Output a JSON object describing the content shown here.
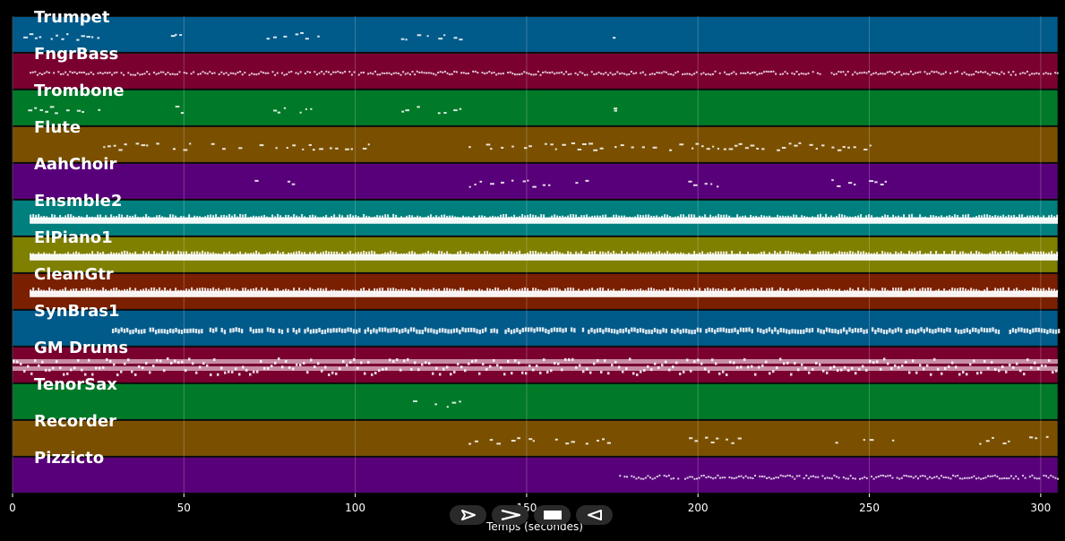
{
  "chart_data": {
    "type": "piano-roll",
    "xlabel": "Temps (secondes)",
    "xlim": [
      0,
      305
    ],
    "xticks": [
      0,
      50,
      100,
      150,
      200,
      250,
      300
    ],
    "grid": true,
    "tracks": [
      {
        "name": "Trumpet",
        "color": "#005a8a",
        "segments": [
          [
            3,
            26,
            "sparse"
          ],
          [
            46,
            50,
            "sparse"
          ],
          [
            74,
            90,
            "sparse"
          ],
          [
            113,
            133,
            "sparse"
          ],
          [
            175,
            176,
            "sparse"
          ]
        ]
      },
      {
        "name": "FngrBass",
        "color": "#7a0030",
        "segments": [
          [
            5,
            305,
            "thin"
          ]
        ]
      },
      {
        "name": "Trombone",
        "color": "#007a28",
        "segments": [
          [
            3,
            26,
            "sparse"
          ],
          [
            46,
            50,
            "sparse"
          ],
          [
            74,
            90,
            "sparse"
          ],
          [
            113,
            133,
            "sparse"
          ],
          [
            175,
            176,
            "sparse"
          ]
        ]
      },
      {
        "name": "Flute",
        "color": "#7a5000",
        "segments": [
          [
            26,
            108,
            "sparse"
          ],
          [
            133,
            256,
            "sparse"
          ]
        ]
      },
      {
        "name": "AahChoir",
        "color": "#58007a",
        "segments": [
          [
            69,
            72,
            "sparse"
          ],
          [
            80,
            84,
            "sparse"
          ],
          [
            133,
            170,
            "sparse"
          ],
          [
            197,
            213,
            "sparse"
          ],
          [
            237,
            256,
            "sparse"
          ]
        ]
      },
      {
        "name": "Ensmble2",
        "color": "#007f7f",
        "segments": [
          [
            5,
            305,
            "thick"
          ]
        ]
      },
      {
        "name": "ElPiano1",
        "color": "#7f7f00",
        "segments": [
          [
            5,
            305,
            "thick"
          ]
        ]
      },
      {
        "name": "CleanGtr",
        "color": "#7a2000",
        "segments": [
          [
            5,
            305,
            "thick"
          ]
        ]
      },
      {
        "name": "SynBras1",
        "color": "#005a8a",
        "segments": [
          [
            29,
            305,
            "medium"
          ]
        ]
      },
      {
        "name": "GM Drums",
        "color": "#7a0030",
        "segments": [
          [
            0,
            305,
            "drums"
          ]
        ]
      },
      {
        "name": "TenorSax",
        "color": "#007a28",
        "segments": [
          [
            115,
            133,
            "sparse"
          ]
        ]
      },
      {
        "name": "Recorder",
        "color": "#7a5000",
        "segments": [
          [
            133,
            175,
            "sparse"
          ],
          [
            197,
            216,
            "sparse"
          ],
          [
            240,
            258,
            "sparse"
          ],
          [
            282,
            303,
            "sparse"
          ]
        ]
      },
      {
        "name": "Pizzicto",
        "color": "#58007a",
        "segments": [
          [
            177,
            305,
            "thin"
          ]
        ]
      }
    ]
  },
  "controls": [
    {
      "name": "play-button",
      "icon": "play-outline-icon"
    },
    {
      "name": "next-button",
      "icon": "chevron-right-icon"
    },
    {
      "name": "stop-button",
      "icon": "stop-icon"
    },
    {
      "name": "reverse-button",
      "icon": "play-reverse-icon"
    }
  ]
}
